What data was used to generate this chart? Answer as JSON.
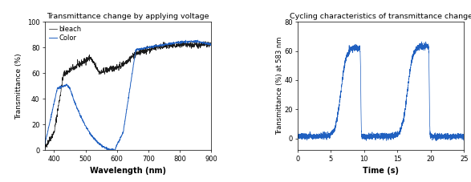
{
  "title_left": "Transmittance change by applying voltage",
  "title_right": "Cycling characteristics of transmittance change",
  "left": {
    "xlabel": "Wavelength (nm)",
    "ylabel": "Transmittance (%)",
    "xlim": [
      370,
      900
    ],
    "ylim": [
      0,
      100
    ],
    "xticks": [
      400,
      500,
      600,
      700,
      800,
      900
    ],
    "yticks": [
      0,
      20,
      40,
      60,
      80,
      100
    ],
    "legend": [
      "bleach",
      "Color"
    ],
    "bleach_color": "#1a1a1a",
    "color_color": "#2060c0"
  },
  "right": {
    "xlabel": "Time (s)",
    "ylabel": "Transmittance (%) at 583 nm",
    "xlim": [
      0,
      25
    ],
    "ylim": [
      -8,
      80
    ],
    "xticks": [
      0,
      5,
      10,
      15,
      20,
      25
    ],
    "yticks": [
      0,
      20,
      40,
      60,
      80
    ],
    "line_color": "#2060c0"
  },
  "fig_width": 5.87,
  "fig_height": 2.27,
  "dpi": 100
}
